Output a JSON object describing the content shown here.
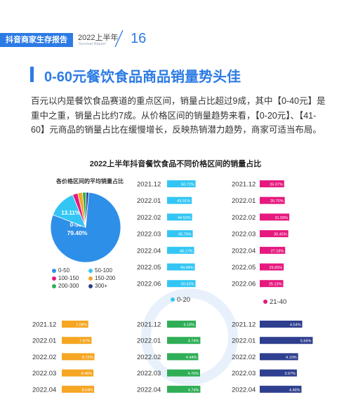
{
  "header": {
    "tag": "抖音商家生存报告",
    "year": "2022上半年",
    "subtitle": "Survival Report",
    "page_number": "16"
  },
  "title": "0-60元餐饮食品商品销量势头佳",
  "paragraph": "百元以内是餐饮食品赛道的重点区间，销量占比超过9成，其中【0-40元】是重中之重，销量占比约7成。从价格区间的销量趋势来看，【0-20元】、【41-60】元商品的销量占比在缓慢增长，反映热销潜力趋势，商家可适当布局。",
  "colors": {
    "brand": "#2c7be5",
    "c0_50": "#2e8fe8",
    "c50_100": "#33c6f4",
    "c100_150": "#e6197f",
    "c150_200": "#f5a623",
    "c200_300": "#2fae57",
    "c300": "#2f3f8f"
  },
  "chart_data": [
    {
      "type": "pie",
      "title": "2022上半年抖音餐饮食品不同价格区间的销量占比",
      "subtitle": "各价格区间的平均销量占比",
      "slices": [
        {
          "label": "0-50",
          "value": 79.4,
          "value_label": "79.40%",
          "color": "#2e8fe8"
        },
        {
          "label": "50-100",
          "value": 13.11,
          "value_label": "13.11%",
          "color": "#33c6f4"
        },
        {
          "label": "100-150",
          "value": 2.4,
          "color": "#e6197f"
        },
        {
          "label": "150-200",
          "value": 2.2,
          "color": "#f5a623"
        },
        {
          "label": "200-300",
          "value": 1.7,
          "color": "#2fae57"
        },
        {
          "label": "300+",
          "value": 1.19,
          "color": "#2f3f8f"
        }
      ]
    },
    {
      "type": "bar",
      "series_name": "0-20",
      "color": "#33c6f4",
      "categories": [
        "2021.12",
        "2022.01",
        "2022.02",
        "2022.03",
        "2022.04",
        "2022.05",
        "2022.06"
      ],
      "values": [
        50.72,
        43.91,
        44.53,
        45.7,
        48.17,
        49.49,
        50.63
      ],
      "value_labels": [
        "50.72%",
        "43.91%",
        "44.53%",
        "45.70%",
        "48.17%",
        "49.49%",
        "50.63%"
      ]
    },
    {
      "type": "bar",
      "series_name": "21-40",
      "color": "#e6197f",
      "categories": [
        "2021.12",
        "2022.01",
        "2022.02",
        "2022.03",
        "2022.04",
        "2022.05",
        "2022.06"
      ],
      "values": [
        26.07,
        26.7,
        31.59,
        30.45,
        27.18,
        25.65,
        25.13
      ],
      "value_labels": [
        "26.07%",
        "26.70%",
        "31.59%",
        "30.45%",
        "27.18%",
        "25.65%",
        "25.13%"
      ]
    },
    {
      "type": "bar",
      "color": "#f5a623",
      "categories": [
        "2021.12",
        "2022.01",
        "2022.02",
        "2022.03",
        "2022.04"
      ],
      "values": [
        7.08,
        7.97,
        8.72,
        8.46,
        8.64
      ],
      "value_labels": [
        "7.08%",
        "7.97%",
        "8.72%",
        "8.46%",
        "8.64%"
      ]
    },
    {
      "type": "bar",
      "color": "#2fae57",
      "categories": [
        "2021.12",
        "2022.01",
        "2022.02",
        "2022.03",
        "2022.04"
      ],
      "values": [
        4.1,
        4.74,
        4.44,
        4.7,
        4.74
      ],
      "value_labels": [
        "4.10%",
        "4.74%",
        "4.44%",
        "4.70%",
        "4.74%"
      ]
    },
    {
      "type": "bar",
      "color": "#2f3f8f",
      "categories": [
        "2021.12",
        "2022.01",
        "2022.02",
        "2022.03",
        "2022.04"
      ],
      "values": [
        4.54,
        5.66,
        4.1,
        3.97,
        4.46
      ],
      "value_labels": [
        "4.54%",
        "5.66%",
        "4.10%",
        "3.97%",
        "4.46%"
      ]
    }
  ]
}
